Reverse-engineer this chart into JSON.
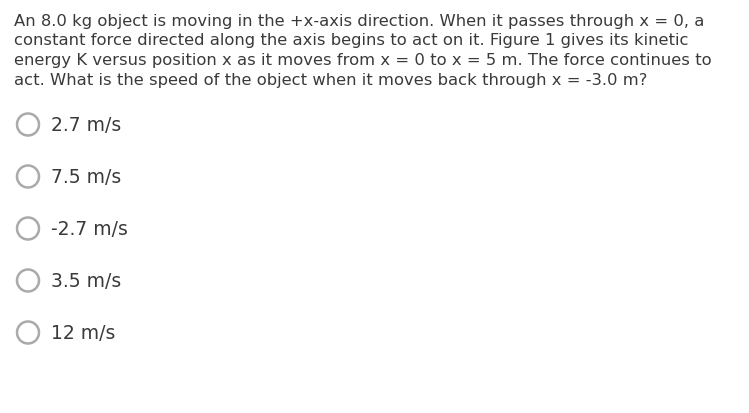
{
  "background_color": "#ffffff",
  "question_lines": [
    "An 8.0 kg object is moving in the +x-axis direction. When it passes through x = 0, a",
    "constant force directed along the axis begins to act on it. Figure 1 gives its kinetic",
    "energy K versus position x as it moves from x = 0 to x = 5 m. The force continues to",
    "act. What is the speed of the object when it moves back through x = -3.0 m?"
  ],
  "choices": [
    "2.7 m/s",
    "7.5 m/s",
    "-2.7 m/s",
    "3.5 m/s",
    "12 m/s"
  ],
  "text_color": "#3a3a3a",
  "question_fontsize": 11.8,
  "choice_fontsize": 13.5,
  "circle_color": "#aaaaaa",
  "circle_linewidth": 1.8
}
